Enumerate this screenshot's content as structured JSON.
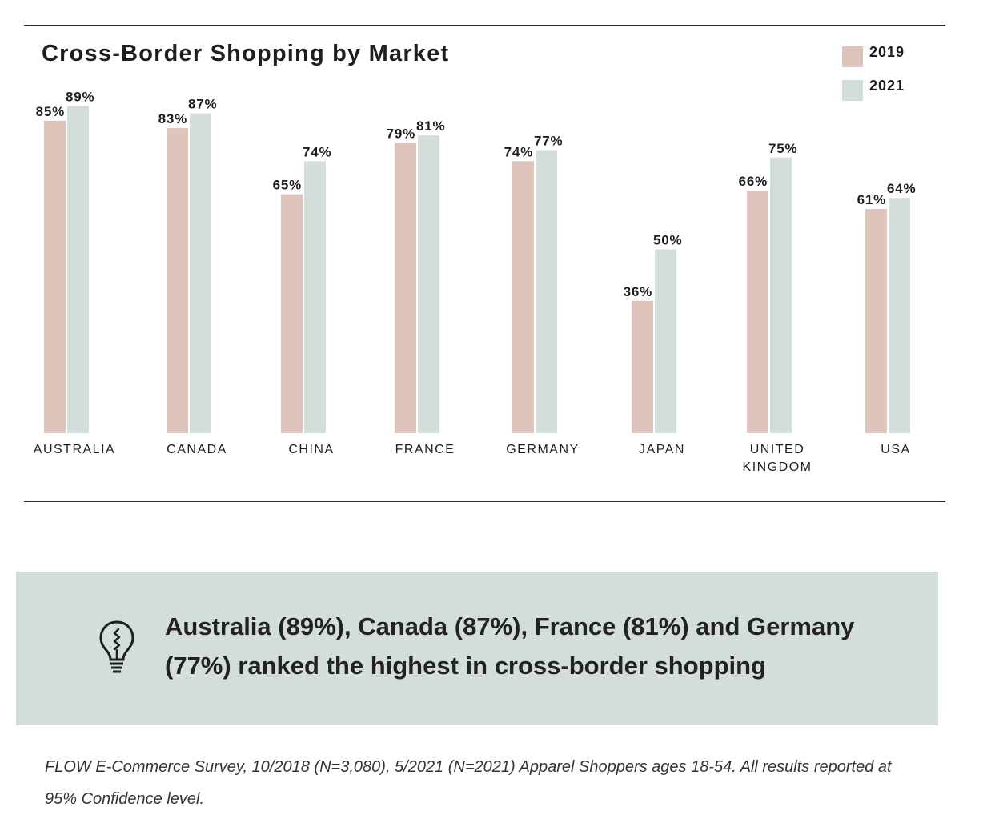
{
  "chart_data": {
    "type": "bar",
    "title": "Cross-Border Shopping by Market",
    "categories": [
      [
        "AUSTRALIA"
      ],
      [
        "CANADA"
      ],
      [
        "CHINA"
      ],
      [
        "FRANCE"
      ],
      [
        "GERMANY"
      ],
      [
        "JAPAN"
      ],
      [
        "UNITED",
        "KINGDOM"
      ],
      [
        "USA"
      ]
    ],
    "series": [
      {
        "name": "2019",
        "color": "#dfc4bb",
        "values": [
          85,
          83,
          65,
          79,
          74,
          36,
          66,
          61
        ]
      },
      {
        "name": "2021",
        "color": "#d3ddda",
        "values": [
          89,
          87,
          74,
          81,
          77,
          50,
          75,
          64
        ]
      }
    ],
    "value_suffix": "%",
    "ylim": [
      0,
      100
    ],
    "grid": false,
    "legend_position": "top-right"
  },
  "callout": {
    "icon": "lightbulb-icon",
    "text": "Australia (89%), Canada (87%), France (81%) and Germany (77%) ranked the highest in cross-border shopping"
  },
  "source_note": "FLOW E-Commerce Survey, 10/2018 (N=3,080), 5/2021 (N=2021) Apparel Shoppers ages 18-54.  All results reported at 95% Confidence level."
}
